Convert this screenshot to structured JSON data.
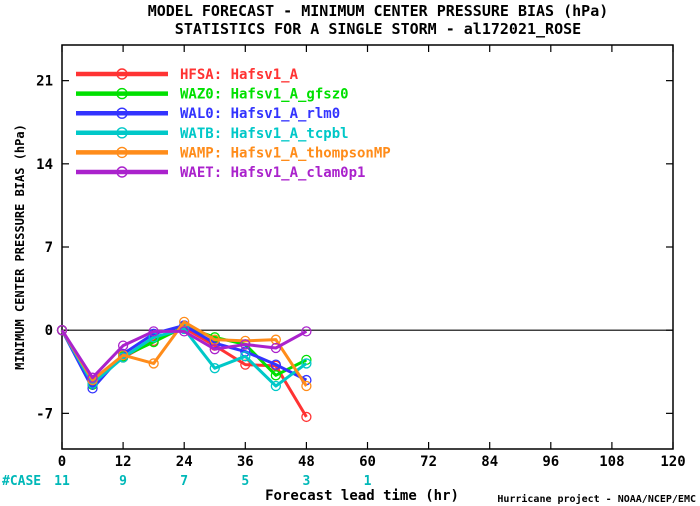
{
  "chart_data": {
    "type": "line",
    "title": "MODEL FORECAST - MINIMUM CENTER PRESSURE BIAS (hPa)",
    "subtitle": "STATISTICS FOR A SINGLE STORM - al172021_ROSE",
    "xlabel": "Forecast lead time (hr)",
    "ylabel": "MINIMUM CENTER PRESSURE BIAS (hPa)",
    "xlim": [
      0,
      120
    ],
    "ylim": [
      -10,
      24
    ],
    "xticks": [
      "0",
      "12",
      "24",
      "36",
      "48",
      "60",
      "72",
      "84",
      "96",
      "108",
      "120"
    ],
    "yticks": [
      "21",
      "14",
      "7",
      "0",
      "-7"
    ],
    "grid": false,
    "legend_position": "top-left",
    "x": [
      0,
      6,
      12,
      18,
      24,
      30,
      36,
      42,
      48
    ],
    "series": [
      {
        "name": "HFSA: Hafsv1_A",
        "color": "#ff3333",
        "values": [
          0,
          -4.3,
          -2.3,
          -0.9,
          0.2,
          -1.3,
          -2.9,
          -3.0,
          -7.3
        ]
      },
      {
        "name": "WAZ0: Hafsv1_A_gfsz0",
        "color": "#00e000",
        "values": [
          0,
          -4.6,
          -2.2,
          -1.0,
          0.3,
          -0.6,
          -1.2,
          -3.8,
          -2.5
        ]
      },
      {
        "name": "WAL0: Hafsv1_A_rlm0",
        "color": "#3333ff",
        "values": [
          0,
          -4.9,
          -2.0,
          -0.3,
          0.4,
          -1.1,
          -1.8,
          -2.9,
          -4.2
        ]
      },
      {
        "name": "WATB: Hafsv1_A_tcpbl",
        "color": "#00c8c8",
        "values": [
          0,
          -4.5,
          -2.3,
          -0.6,
          0.1,
          -3.2,
          -2.2,
          -4.7,
          -2.8
        ]
      },
      {
        "name": "WAMP: Hafsv1_A_thompsonMP",
        "color": "#ff8c1a",
        "values": [
          0,
          -4.2,
          -2.1,
          -2.8,
          0.7,
          -0.8,
          -0.9,
          -0.8,
          -4.7
        ]
      },
      {
        "name": "WAET: Hafsv1_A_clam0p1",
        "color": "#aa22cc",
        "values": [
          0,
          -4.0,
          -1.3,
          -0.1,
          -0.1,
          -1.6,
          -1.2,
          -1.5,
          -0.1
        ]
      }
    ],
    "case_counts": {
      "label": "#CASE",
      "x": [
        0,
        12,
        24,
        36,
        48,
        60
      ],
      "values": [
        "11",
        "9",
        "7",
        "5",
        "3",
        "1"
      ]
    }
  },
  "footer": "Hurricane project - NOAA/NCEP/EMC"
}
